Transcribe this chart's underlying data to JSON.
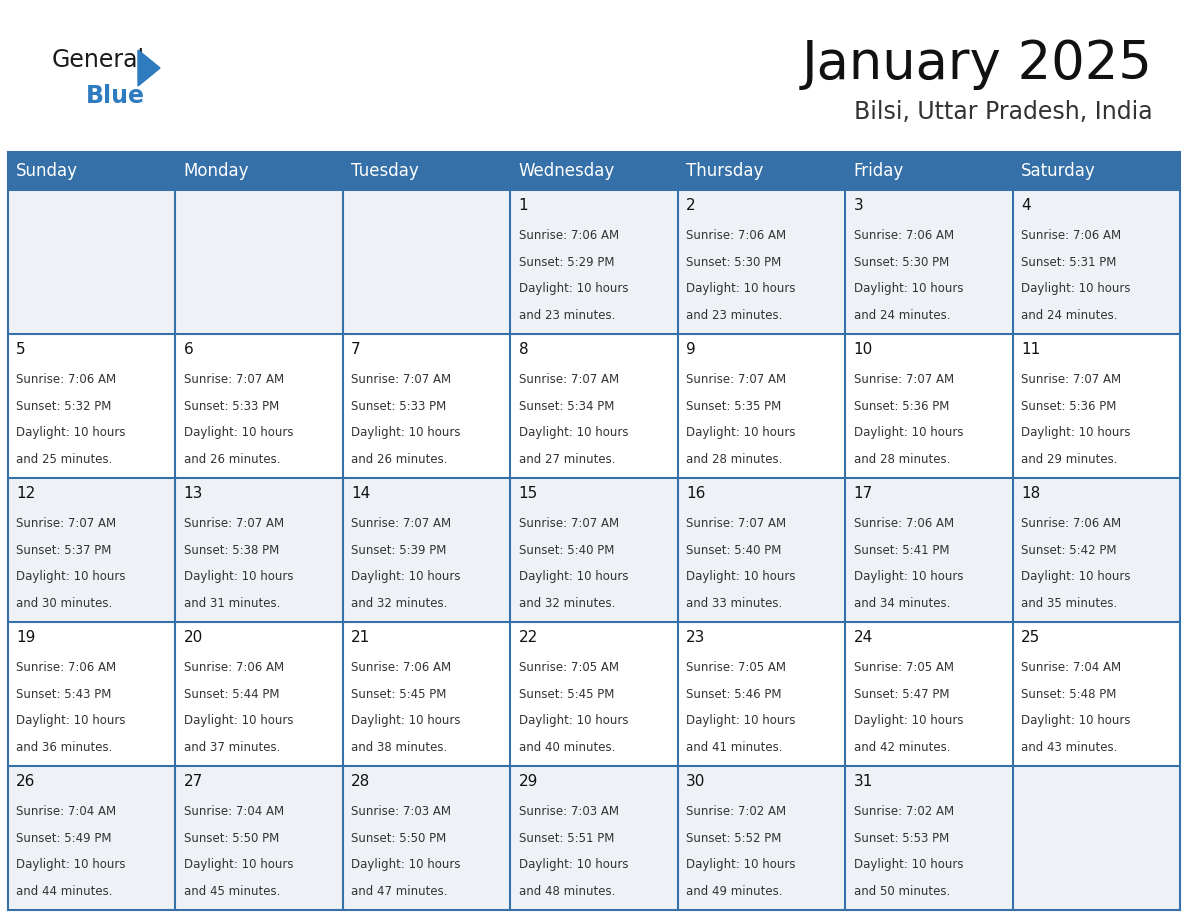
{
  "title": "January 2025",
  "subtitle": "Bilsi, Uttar Pradesh, India",
  "header_bg": "#3570a8",
  "header_text_color": "#ffffff",
  "cell_bg_odd": "#eef2f7",
  "cell_bg_even": "#ffffff",
  "border_color": "#3570a8",
  "day_names": [
    "Sunday",
    "Monday",
    "Tuesday",
    "Wednesday",
    "Thursday",
    "Friday",
    "Saturday"
  ],
  "days_data": [
    {
      "day": 1,
      "col": 3,
      "row": 0,
      "sunrise": "7:06 AM",
      "sunset": "5:29 PM",
      "daylight_suffix": "23 minutes."
    },
    {
      "day": 2,
      "col": 4,
      "row": 0,
      "sunrise": "7:06 AM",
      "sunset": "5:30 PM",
      "daylight_suffix": "23 minutes."
    },
    {
      "day": 3,
      "col": 5,
      "row": 0,
      "sunrise": "7:06 AM",
      "sunset": "5:30 PM",
      "daylight_suffix": "24 minutes."
    },
    {
      "day": 4,
      "col": 6,
      "row": 0,
      "sunrise": "7:06 AM",
      "sunset": "5:31 PM",
      "daylight_suffix": "24 minutes."
    },
    {
      "day": 5,
      "col": 0,
      "row": 1,
      "sunrise": "7:06 AM",
      "sunset": "5:32 PM",
      "daylight_suffix": "25 minutes."
    },
    {
      "day": 6,
      "col": 1,
      "row": 1,
      "sunrise": "7:07 AM",
      "sunset": "5:33 PM",
      "daylight_suffix": "26 minutes."
    },
    {
      "day": 7,
      "col": 2,
      "row": 1,
      "sunrise": "7:07 AM",
      "sunset": "5:33 PM",
      "daylight_suffix": "26 minutes."
    },
    {
      "day": 8,
      "col": 3,
      "row": 1,
      "sunrise": "7:07 AM",
      "sunset": "5:34 PM",
      "daylight_suffix": "27 minutes."
    },
    {
      "day": 9,
      "col": 4,
      "row": 1,
      "sunrise": "7:07 AM",
      "sunset": "5:35 PM",
      "daylight_suffix": "28 minutes."
    },
    {
      "day": 10,
      "col": 5,
      "row": 1,
      "sunrise": "7:07 AM",
      "sunset": "5:36 PM",
      "daylight_suffix": "28 minutes."
    },
    {
      "day": 11,
      "col": 6,
      "row": 1,
      "sunrise": "7:07 AM",
      "sunset": "5:36 PM",
      "daylight_suffix": "29 minutes."
    },
    {
      "day": 12,
      "col": 0,
      "row": 2,
      "sunrise": "7:07 AM",
      "sunset": "5:37 PM",
      "daylight_suffix": "30 minutes."
    },
    {
      "day": 13,
      "col": 1,
      "row": 2,
      "sunrise": "7:07 AM",
      "sunset": "5:38 PM",
      "daylight_suffix": "31 minutes."
    },
    {
      "day": 14,
      "col": 2,
      "row": 2,
      "sunrise": "7:07 AM",
      "sunset": "5:39 PM",
      "daylight_suffix": "32 minutes."
    },
    {
      "day": 15,
      "col": 3,
      "row": 2,
      "sunrise": "7:07 AM",
      "sunset": "5:40 PM",
      "daylight_suffix": "32 minutes."
    },
    {
      "day": 16,
      "col": 4,
      "row": 2,
      "sunrise": "7:07 AM",
      "sunset": "5:40 PM",
      "daylight_suffix": "33 minutes."
    },
    {
      "day": 17,
      "col": 5,
      "row": 2,
      "sunrise": "7:06 AM",
      "sunset": "5:41 PM",
      "daylight_suffix": "34 minutes."
    },
    {
      "day": 18,
      "col": 6,
      "row": 2,
      "sunrise": "7:06 AM",
      "sunset": "5:42 PM",
      "daylight_suffix": "35 minutes."
    },
    {
      "day": 19,
      "col": 0,
      "row": 3,
      "sunrise": "7:06 AM",
      "sunset": "5:43 PM",
      "daylight_suffix": "36 minutes."
    },
    {
      "day": 20,
      "col": 1,
      "row": 3,
      "sunrise": "7:06 AM",
      "sunset": "5:44 PM",
      "daylight_suffix": "37 minutes."
    },
    {
      "day": 21,
      "col": 2,
      "row": 3,
      "sunrise": "7:06 AM",
      "sunset": "5:45 PM",
      "daylight_suffix": "38 minutes."
    },
    {
      "day": 22,
      "col": 3,
      "row": 3,
      "sunrise": "7:05 AM",
      "sunset": "5:45 PM",
      "daylight_suffix": "40 minutes."
    },
    {
      "day": 23,
      "col": 4,
      "row": 3,
      "sunrise": "7:05 AM",
      "sunset": "5:46 PM",
      "daylight_suffix": "41 minutes."
    },
    {
      "day": 24,
      "col": 5,
      "row": 3,
      "sunrise": "7:05 AM",
      "sunset": "5:47 PM",
      "daylight_suffix": "42 minutes."
    },
    {
      "day": 25,
      "col": 6,
      "row": 3,
      "sunrise": "7:04 AM",
      "sunset": "5:48 PM",
      "daylight_suffix": "43 minutes."
    },
    {
      "day": 26,
      "col": 0,
      "row": 4,
      "sunrise": "7:04 AM",
      "sunset": "5:49 PM",
      "daylight_suffix": "44 minutes."
    },
    {
      "day": 27,
      "col": 1,
      "row": 4,
      "sunrise": "7:04 AM",
      "sunset": "5:50 PM",
      "daylight_suffix": "45 minutes."
    },
    {
      "day": 28,
      "col": 2,
      "row": 4,
      "sunrise": "7:03 AM",
      "sunset": "5:50 PM",
      "daylight_suffix": "47 minutes."
    },
    {
      "day": 29,
      "col": 3,
      "row": 4,
      "sunrise": "7:03 AM",
      "sunset": "5:51 PM",
      "daylight_suffix": "48 minutes."
    },
    {
      "day": 30,
      "col": 4,
      "row": 4,
      "sunrise": "7:02 AM",
      "sunset": "5:52 PM",
      "daylight_suffix": "49 minutes."
    },
    {
      "day": 31,
      "col": 5,
      "row": 4,
      "sunrise": "7:02 AM",
      "sunset": "5:53 PM",
      "daylight_suffix": "50 minutes."
    }
  ],
  "num_rows": 5,
  "num_cols": 7,
  "logo_general_color": "#1a1a1a",
  "logo_blue_color": "#2e7bbf",
  "title_fontsize": 38,
  "subtitle_fontsize": 17,
  "header_fontsize": 12,
  "day_number_fontsize": 11,
  "cell_text_fontsize": 8.5
}
